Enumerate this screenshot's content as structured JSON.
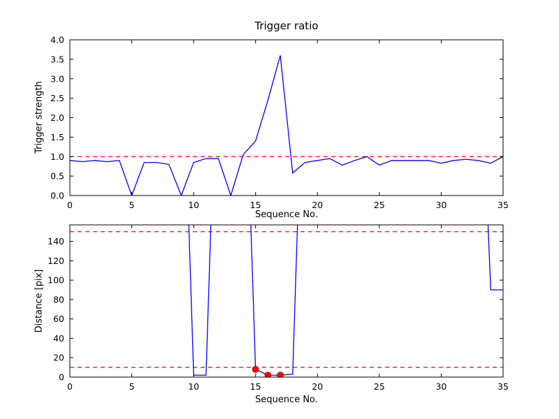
{
  "figure": {
    "bg": "#ffffff",
    "line_color": "#0000ff",
    "dashed_color": "#ff0000",
    "marker_color": "#ff0000",
    "marker_edge": "#990000",
    "axis_color": "#000000"
  },
  "chart_data": [
    {
      "id": "top",
      "type": "line",
      "title": "Trigger ratio",
      "xlabel": "Sequence No.",
      "ylabel": "Trigger strength",
      "xlim": [
        0,
        35
      ],
      "ylim": [
        0,
        4.0
      ],
      "xticks": [
        0,
        5,
        10,
        15,
        20,
        25,
        30,
        35
      ],
      "yticks": [
        0.0,
        0.5,
        1.0,
        1.5,
        2.0,
        2.5,
        3.0,
        3.5,
        4.0
      ],
      "ytick_decimals": 1,
      "threshold_lines": [
        1.0
      ],
      "x": [
        0,
        1,
        2,
        3,
        4,
        5,
        6,
        7,
        8,
        9,
        10,
        11,
        12,
        13,
        14,
        15,
        16,
        17,
        18,
        19,
        20,
        21,
        22,
        23,
        24,
        25,
        26,
        27,
        28,
        29,
        30,
        31,
        32,
        33,
        34,
        35
      ],
      "y": [
        0.9,
        0.87,
        0.9,
        0.87,
        0.9,
        0.0,
        0.85,
        0.85,
        0.8,
        0.0,
        0.85,
        0.95,
        0.95,
        0.0,
        1.05,
        1.4,
        2.45,
        3.6,
        0.58,
        0.85,
        0.9,
        0.95,
        0.78,
        0.9,
        1.0,
        0.78,
        0.9,
        0.9,
        0.9,
        0.9,
        0.83,
        0.9,
        0.93,
        0.9,
        0.83,
        1.0
      ],
      "markers": []
    },
    {
      "id": "bottom",
      "type": "line",
      "title": "",
      "xlabel": "Sequence No.",
      "ylabel": "Distance [pix]",
      "xlim": [
        0,
        35
      ],
      "ylim": [
        0,
        157
      ],
      "xticks": [
        0,
        5,
        10,
        15,
        20,
        25,
        30,
        35
      ],
      "yticks": [
        0,
        20,
        40,
        60,
        80,
        100,
        120,
        140
      ],
      "ytick_decimals": 0,
      "threshold_lines": [
        150,
        10
      ],
      "x": [
        0,
        1,
        2,
        3,
        4,
        5,
        6,
        7,
        8,
        9,
        10,
        11,
        12,
        13,
        14,
        15,
        16,
        17,
        18,
        19,
        20,
        21,
        22,
        23,
        24,
        25,
        26,
        27,
        28,
        29,
        30,
        31,
        32,
        33,
        34,
        35
      ],
      "y": [
        400,
        400,
        400,
        400,
        400,
        400,
        400,
        400,
        400,
        400,
        2,
        2,
        400,
        400,
        400,
        8,
        2,
        2,
        3,
        400,
        400,
        400,
        400,
        400,
        400,
        400,
        400,
        400,
        400,
        400,
        400,
        400,
        400,
        400,
        90,
        90
      ],
      "markers": [
        [
          15,
          8
        ],
        [
          16,
          2
        ],
        [
          17,
          2
        ]
      ]
    }
  ]
}
